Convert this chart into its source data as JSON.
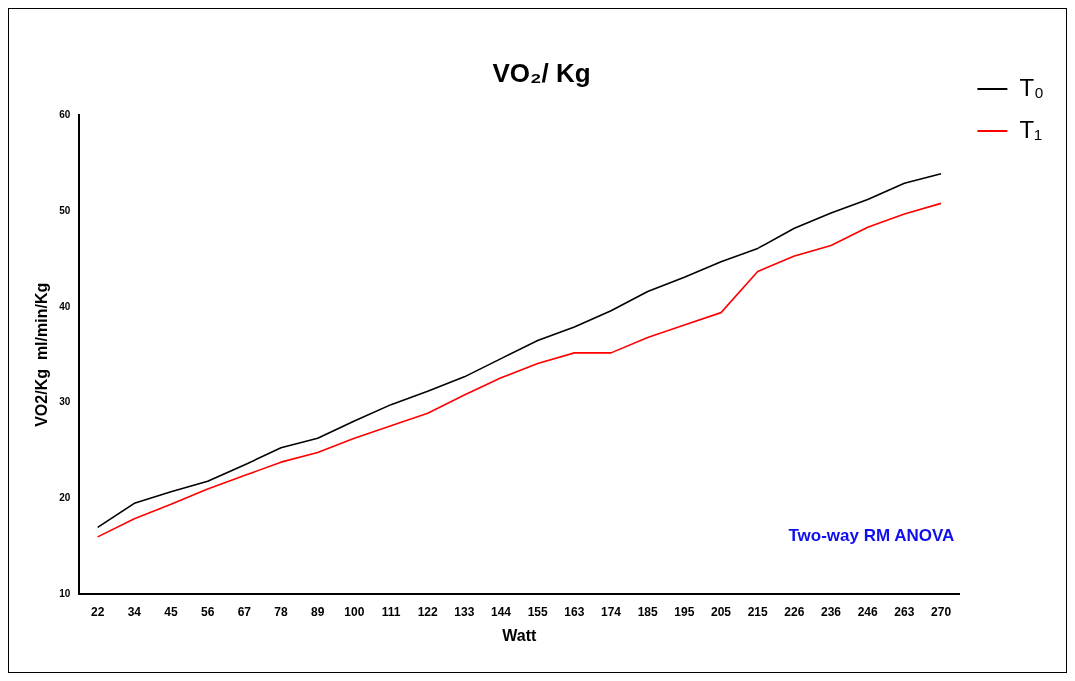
{
  "chart_data": {
    "type": "line",
    "title": "VO₂/ Kg",
    "xlabel": "Watt",
    "ylabel": "VO2/Kg  ml/min/Kg",
    "categories": [
      "22",
      "34",
      "45",
      "56",
      "67",
      "78",
      "89",
      "100",
      "111",
      "122",
      "133",
      "144",
      "155",
      "163",
      "174",
      "185",
      "195",
      "205",
      "215",
      "226",
      "236",
      "246",
      "263",
      "270"
    ],
    "series": [
      {
        "name": "T₀",
        "color": "#000000",
        "values": [
          17.0,
          19.5,
          20.7,
          21.8,
          23.5,
          25.3,
          26.3,
          28.1,
          29.8,
          31.2,
          32.7,
          34.6,
          36.5,
          37.9,
          39.6,
          41.6,
          43.1,
          44.7,
          46.1,
          48.2,
          49.8,
          51.2,
          52.9,
          53.9
        ]
      },
      {
        "name": "T₁",
        "color": "#ff0000",
        "values": [
          16.0,
          17.9,
          19.4,
          21.0,
          22.4,
          23.8,
          24.8,
          26.3,
          27.6,
          28.9,
          30.8,
          32.6,
          34.1,
          35.2,
          35.2,
          36.8,
          38.1,
          39.4,
          43.7,
          45.3,
          46.4,
          48.3,
          49.7,
          50.8
        ]
      }
    ],
    "ylim": [
      10,
      60
    ],
    "yticks": [
      10,
      20,
      30,
      40,
      50,
      60
    ],
    "grid": false,
    "legend": "top right",
    "marker": "none",
    "line_style": "solid",
    "annotations": [
      "Two-way RM ANOVA"
    ]
  }
}
